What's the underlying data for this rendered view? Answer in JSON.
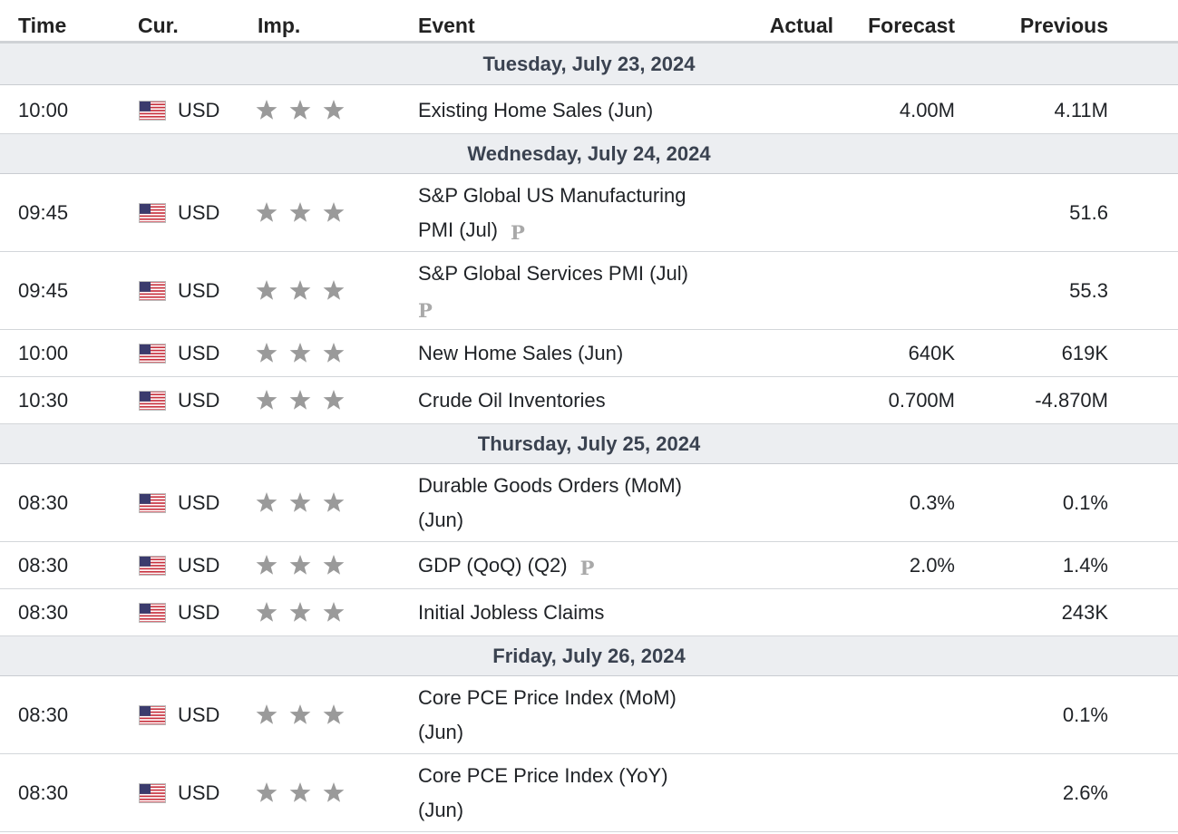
{
  "headers": {
    "time": "Time",
    "currency": "Cur.",
    "importance": "Imp.",
    "event": "Event",
    "actual": "Actual",
    "forecast": "Forecast",
    "previous": "Previous"
  },
  "flag_icon": "us-flag-icon",
  "importance_icon": "star-icon",
  "colors": {
    "star": "#9a9a9a",
    "day_bg": "#eceef1",
    "preliminary_badge": "#a9a9a9"
  },
  "days": [
    {
      "label": "Tuesday, July 23, 2024",
      "events": [
        {
          "time": "10:00",
          "currency": "USD",
          "stars": 3,
          "line1": "Existing Home Sales (Jun)",
          "line2": "",
          "badge": "",
          "actual": "",
          "forecast": "4.00M",
          "previous": "4.11M"
        }
      ]
    },
    {
      "label": "Wednesday, July 24, 2024",
      "events": [
        {
          "time": "09:45",
          "currency": "USD",
          "stars": 3,
          "line1": "S&P Global US Manufacturing",
          "line2": "PMI (Jul)",
          "badge": "P",
          "actual": "",
          "forecast": "",
          "previous": "51.6"
        },
        {
          "time": "09:45",
          "currency": "USD",
          "stars": 3,
          "line1": "S&P Global Services PMI (Jul)",
          "line2": "",
          "badge": "P",
          "actual": "",
          "forecast": "",
          "previous": "55.3"
        },
        {
          "time": "10:00",
          "currency": "USD",
          "stars": 3,
          "line1": "New Home Sales (Jun)",
          "line2": "",
          "badge": "",
          "actual": "",
          "forecast": "640K",
          "previous": "619K"
        },
        {
          "time": "10:30",
          "currency": "USD",
          "stars": 3,
          "line1": "Crude Oil Inventories",
          "line2": "",
          "badge": "",
          "actual": "",
          "forecast": "0.700M",
          "previous": "-4.870M"
        }
      ]
    },
    {
      "label": "Thursday, July 25, 2024",
      "events": [
        {
          "time": "08:30",
          "currency": "USD",
          "stars": 3,
          "line1": "Durable Goods Orders (MoM)",
          "line2": "(Jun)",
          "badge": "",
          "actual": "",
          "forecast": "0.3%",
          "previous": "0.1%"
        },
        {
          "time": "08:30",
          "currency": "USD",
          "stars": 3,
          "line1": "GDP (QoQ) (Q2)",
          "line2": "",
          "badge": "P",
          "actual": "",
          "forecast": "2.0%",
          "previous": "1.4%"
        },
        {
          "time": "08:30",
          "currency": "USD",
          "stars": 3,
          "line1": "Initial Jobless Claims",
          "line2": "",
          "badge": "",
          "actual": "",
          "forecast": "",
          "previous": "243K"
        }
      ]
    },
    {
      "label": "Friday, July 26, 2024",
      "events": [
        {
          "time": "08:30",
          "currency": "USD",
          "stars": 3,
          "line1": "Core PCE Price Index (MoM)",
          "line2": "(Jun)",
          "badge": "",
          "actual": "",
          "forecast": "",
          "previous": "0.1%"
        },
        {
          "time": "08:30",
          "currency": "USD",
          "stars": 3,
          "line1": "Core PCE Price Index (YoY)",
          "line2": "(Jun)",
          "badge": "",
          "actual": "",
          "forecast": "",
          "previous": "2.6%"
        }
      ]
    }
  ]
}
